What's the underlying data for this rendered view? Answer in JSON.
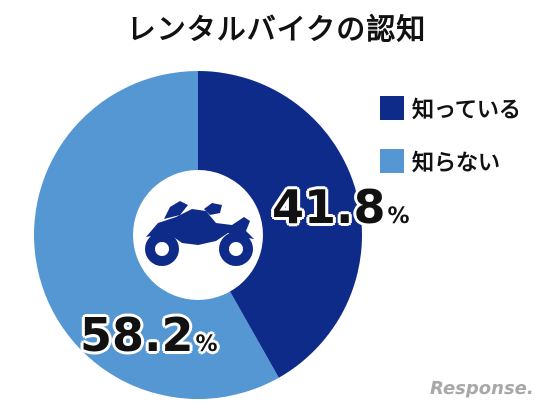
{
  "chart_data": {
    "type": "pie",
    "title": "レンタルバイクの認知",
    "categories": [
      "知っている",
      "知らない"
    ],
    "values": [
      41.8,
      58.2
    ],
    "unit": "%",
    "colors": [
      "#0f2b8a",
      "#5597d2"
    ],
    "legend_position": "top-right",
    "center_icon": "motorcycle-icon"
  },
  "watermark": "Response."
}
